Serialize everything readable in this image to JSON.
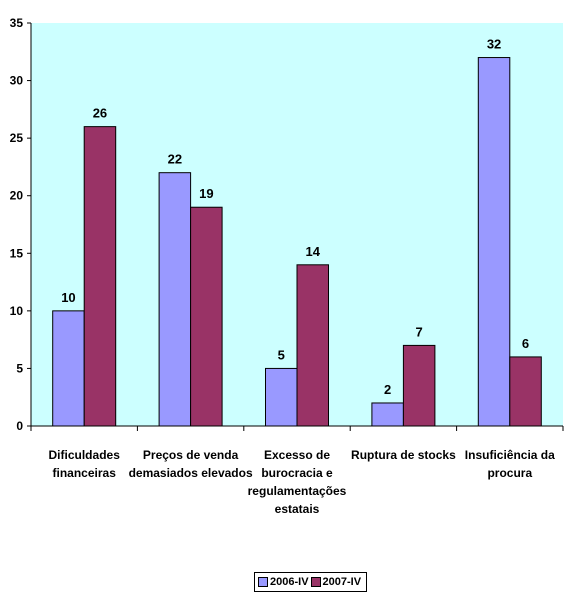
{
  "chart_data": {
    "type": "bar",
    "categories": [
      [
        "Dificuldades",
        "financeiras"
      ],
      [
        "Preços de venda",
        "demasiados elevados"
      ],
      [
        "Excesso de",
        "burocracia e",
        "regulamentações",
        "estatais"
      ],
      [
        "Ruptura de stocks"
      ],
      [
        "Insuficiência da",
        "procura"
      ]
    ],
    "series": [
      {
        "name": "2006-IV",
        "values": [
          10,
          22,
          5,
          2,
          32
        ]
      },
      {
        "name": "2007-IV",
        "values": [
          26,
          19,
          14,
          7,
          6
        ]
      }
    ],
    "ylim": [
      0,
      35
    ],
    "yticks": [
      0,
      5,
      10,
      15,
      20,
      25,
      30,
      35
    ],
    "grid": false,
    "legend_position": "bottom",
    "colors": {
      "plot_background": "#CCFFFF",
      "series": [
        "#9999FF",
        "#993366"
      ]
    }
  }
}
